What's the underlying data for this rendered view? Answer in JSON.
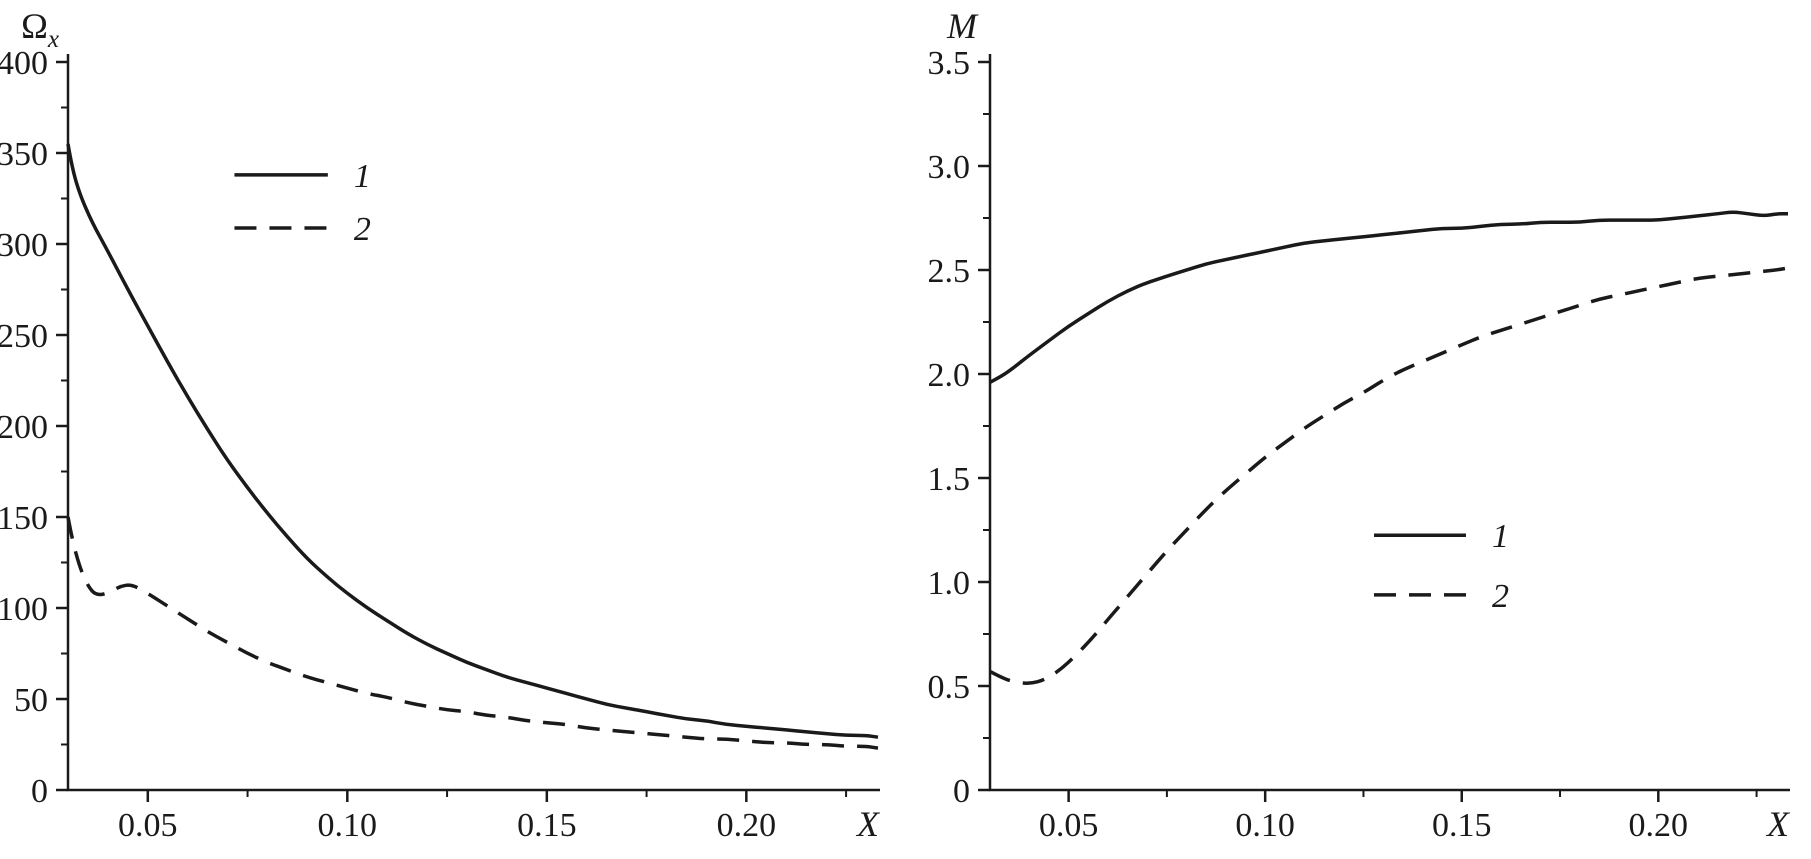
{
  "figure": {
    "background": "#ffffff",
    "line_color": "#1a1a1a",
    "dash_pattern": "22 13"
  },
  "chart_data": [
    {
      "id": "omega-x-vs-x",
      "type": "line",
      "xlabel": "X",
      "ylabel": "Ω",
      "ylabel_sub": "x",
      "ylabel_italic": false,
      "xlim": [
        0.03,
        0.2335
      ],
      "ylim": [
        0,
        400
      ],
      "grid": false,
      "xticks": [
        {
          "v": 0.05,
          "label": "0.05"
        },
        {
          "v": 0.1,
          "label": "0.10"
        },
        {
          "v": 0.15,
          "label": "0.15"
        },
        {
          "v": 0.2,
          "label": "0.20"
        }
      ],
      "xticks_minor": [
        0.075,
        0.125,
        0.175,
        0.225
      ],
      "yticks": [
        {
          "v": 0,
          "label": "0"
        },
        {
          "v": 50,
          "label": "50"
        },
        {
          "v": 100,
          "label": "100"
        },
        {
          "v": 150,
          "label": "150"
        },
        {
          "v": 200,
          "label": "200"
        },
        {
          "v": 250,
          "label": "250"
        },
        {
          "v": 300,
          "label": "300"
        },
        {
          "v": 350,
          "label": "350"
        },
        {
          "v": 400,
          "label": "400"
        }
      ],
      "yticks_minor": [
        25,
        75,
        125,
        175,
        225,
        275,
        325,
        375
      ],
      "legend": {
        "position": "upper-left",
        "x": 0.205,
        "y": [
          0.155,
          0.228
        ],
        "line_len": 0.115,
        "entries": [
          {
            "label": "1",
            "dashed": false
          },
          {
            "label": "2",
            "dashed": true
          }
        ]
      },
      "series": [
        {
          "name": "1",
          "style": "solid",
          "dashed": false,
          "points": [
            [
              0.03,
              355
            ],
            [
              0.031,
              342
            ],
            [
              0.033,
              327
            ],
            [
              0.036,
              312
            ],
            [
              0.04,
              296
            ],
            [
              0.045,
              275
            ],
            [
              0.05,
              255
            ],
            [
              0.055,
              235
            ],
            [
              0.06,
              216
            ],
            [
              0.065,
              198
            ],
            [
              0.07,
              181
            ],
            [
              0.075,
              166
            ],
            [
              0.08,
              152
            ],
            [
              0.085,
              139
            ],
            [
              0.09,
              127
            ],
            [
              0.095,
              117
            ],
            [
              0.1,
              108
            ],
            [
              0.105,
              100
            ],
            [
              0.11,
              93
            ],
            [
              0.115,
              86
            ],
            [
              0.12,
              80
            ],
            [
              0.125,
              75
            ],
            [
              0.13,
              70
            ],
            [
              0.135,
              66
            ],
            [
              0.14,
              62
            ],
            [
              0.145,
              59
            ],
            [
              0.15,
              56
            ],
            [
              0.155,
              53
            ],
            [
              0.16,
              50
            ],
            [
              0.165,
              47
            ],
            [
              0.17,
              45
            ],
            [
              0.175,
              43
            ],
            [
              0.18,
              41
            ],
            [
              0.185,
              39
            ],
            [
              0.19,
              38
            ],
            [
              0.195,
              36
            ],
            [
              0.2,
              35
            ],
            [
              0.205,
              34
            ],
            [
              0.21,
              33
            ],
            [
              0.215,
              32
            ],
            [
              0.22,
              31
            ],
            [
              0.225,
              30
            ],
            [
              0.23,
              30
            ],
            [
              0.233,
              29
            ]
          ]
        },
        {
          "name": "2",
          "style": "dashed",
          "dashed": true,
          "points": [
            [
              0.03,
              150
            ],
            [
              0.031,
              138
            ],
            [
              0.033,
              122
            ],
            [
              0.035,
              112
            ],
            [
              0.037,
              107
            ],
            [
              0.04,
              108
            ],
            [
              0.043,
              112
            ],
            [
              0.046,
              113
            ],
            [
              0.05,
              108
            ],
            [
              0.055,
              101
            ],
            [
              0.06,
              94
            ],
            [
              0.065,
              87
            ],
            [
              0.07,
              81
            ],
            [
              0.075,
              75
            ],
            [
              0.08,
              70
            ],
            [
              0.085,
              66
            ],
            [
              0.09,
              62
            ],
            [
              0.095,
              59
            ],
            [
              0.1,
              56
            ],
            [
              0.105,
              53
            ],
            [
              0.11,
              51
            ],
            [
              0.115,
              48
            ],
            [
              0.12,
              46
            ],
            [
              0.125,
              44
            ],
            [
              0.13,
              43
            ],
            [
              0.135,
              41
            ],
            [
              0.14,
              40
            ],
            [
              0.145,
              38
            ],
            [
              0.15,
              37
            ],
            [
              0.155,
              36
            ],
            [
              0.16,
              34
            ],
            [
              0.165,
              33
            ],
            [
              0.17,
              32
            ],
            [
              0.175,
              31
            ],
            [
              0.18,
              30
            ],
            [
              0.185,
              29
            ],
            [
              0.19,
              28
            ],
            [
              0.195,
              28
            ],
            [
              0.2,
              27
            ],
            [
              0.205,
              26
            ],
            [
              0.21,
              26
            ],
            [
              0.215,
              25
            ],
            [
              0.22,
              25
            ],
            [
              0.225,
              24
            ],
            [
              0.23,
              24
            ],
            [
              0.233,
              23
            ]
          ]
        }
      ]
    },
    {
      "id": "m-vs-x",
      "type": "line",
      "xlabel": "X",
      "ylabel": "M",
      "ylabel_sub": "",
      "ylabel_italic": true,
      "xlim": [
        0.03,
        0.2335
      ],
      "ylim": [
        0,
        3.5
      ],
      "grid": false,
      "xticks": [
        {
          "v": 0.05,
          "label": "0.05"
        },
        {
          "v": 0.1,
          "label": "0.10"
        },
        {
          "v": 0.15,
          "label": "0.15"
        },
        {
          "v": 0.2,
          "label": "0.20"
        }
      ],
      "xticks_minor": [
        0.075,
        0.125,
        0.175,
        0.225
      ],
      "yticks": [
        {
          "v": 0,
          "label": "0"
        },
        {
          "v": 0.5,
          "label": "0.5"
        },
        {
          "v": 1.0,
          "label": "1.0"
        },
        {
          "v": 1.5,
          "label": "1.5"
        },
        {
          "v": 2.0,
          "label": "2.0"
        },
        {
          "v": 2.5,
          "label": "2.5"
        },
        {
          "v": 3.0,
          "label": "3.0"
        },
        {
          "v": 3.5,
          "label": "3.5"
        }
      ],
      "yticks_minor": [
        0.25,
        0.75,
        1.25,
        1.75,
        2.25,
        2.75,
        3.25
      ],
      "legend": {
        "position": "lower-center",
        "x": 0.48,
        "y": [
          0.65,
          0.732
        ],
        "line_len": 0.115,
        "entries": [
          {
            "label": "1",
            "dashed": false
          },
          {
            "label": "2",
            "dashed": true
          }
        ]
      },
      "series": [
        {
          "name": "1",
          "style": "solid",
          "dashed": false,
          "points": [
            [
              0.03,
              1.96
            ],
            [
              0.033,
              1.99
            ],
            [
              0.036,
              2.03
            ],
            [
              0.04,
              2.09
            ],
            [
              0.045,
              2.16
            ],
            [
              0.05,
              2.23
            ],
            [
              0.055,
              2.29
            ],
            [
              0.06,
              2.35
            ],
            [
              0.065,
              2.4
            ],
            [
              0.07,
              2.44
            ],
            [
              0.075,
              2.47
            ],
            [
              0.08,
              2.5
            ],
            [
              0.085,
              2.53
            ],
            [
              0.09,
              2.55
            ],
            [
              0.095,
              2.57
            ],
            [
              0.1,
              2.59
            ],
            [
              0.105,
              2.61
            ],
            [
              0.11,
              2.63
            ],
            [
              0.115,
              2.64
            ],
            [
              0.12,
              2.65
            ],
            [
              0.125,
              2.66
            ],
            [
              0.13,
              2.67
            ],
            [
              0.135,
              2.68
            ],
            [
              0.14,
              2.69
            ],
            [
              0.145,
              2.7
            ],
            [
              0.15,
              2.7
            ],
            [
              0.155,
              2.71
            ],
            [
              0.16,
              2.72
            ],
            [
              0.165,
              2.72
            ],
            [
              0.17,
              2.73
            ],
            [
              0.175,
              2.73
            ],
            [
              0.18,
              2.73
            ],
            [
              0.185,
              2.74
            ],
            [
              0.19,
              2.74
            ],
            [
              0.195,
              2.74
            ],
            [
              0.2,
              2.74
            ],
            [
              0.205,
              2.75
            ],
            [
              0.21,
              2.76
            ],
            [
              0.215,
              2.77
            ],
            [
              0.219,
              2.78
            ],
            [
              0.223,
              2.77
            ],
            [
              0.227,
              2.76
            ],
            [
              0.23,
              2.77
            ],
            [
              0.233,
              2.77
            ]
          ]
        },
        {
          "name": "2",
          "style": "dashed",
          "dashed": true,
          "points": [
            [
              0.03,
              0.57
            ],
            [
              0.033,
              0.54
            ],
            [
              0.036,
              0.52
            ],
            [
              0.04,
              0.51
            ],
            [
              0.044,
              0.53
            ],
            [
              0.048,
              0.58
            ],
            [
              0.052,
              0.65
            ],
            [
              0.056,
              0.73
            ],
            [
              0.06,
              0.82
            ],
            [
              0.065,
              0.93
            ],
            [
              0.07,
              1.04
            ],
            [
              0.075,
              1.15
            ],
            [
              0.08,
              1.25
            ],
            [
              0.085,
              1.35
            ],
            [
              0.09,
              1.44
            ],
            [
              0.095,
              1.52
            ],
            [
              0.1,
              1.6
            ],
            [
              0.105,
              1.67
            ],
            [
              0.11,
              1.74
            ],
            [
              0.115,
              1.8
            ],
            [
              0.12,
              1.86
            ],
            [
              0.125,
              1.91
            ],
            [
              0.13,
              1.97
            ],
            [
              0.135,
              2.02
            ],
            [
              0.14,
              2.06
            ],
            [
              0.145,
              2.1
            ],
            [
              0.15,
              2.14
            ],
            [
              0.155,
              2.18
            ],
            [
              0.16,
              2.21
            ],
            [
              0.165,
              2.24
            ],
            [
              0.17,
              2.27
            ],
            [
              0.175,
              2.3
            ],
            [
              0.18,
              2.33
            ],
            [
              0.185,
              2.36
            ],
            [
              0.19,
              2.38
            ],
            [
              0.195,
              2.4
            ],
            [
              0.2,
              2.42
            ],
            [
              0.205,
              2.44
            ],
            [
              0.21,
              2.46
            ],
            [
              0.215,
              2.47
            ],
            [
              0.22,
              2.48
            ],
            [
              0.225,
              2.49
            ],
            [
              0.23,
              2.5
            ],
            [
              0.233,
              2.51
            ]
          ]
        }
      ]
    }
  ]
}
